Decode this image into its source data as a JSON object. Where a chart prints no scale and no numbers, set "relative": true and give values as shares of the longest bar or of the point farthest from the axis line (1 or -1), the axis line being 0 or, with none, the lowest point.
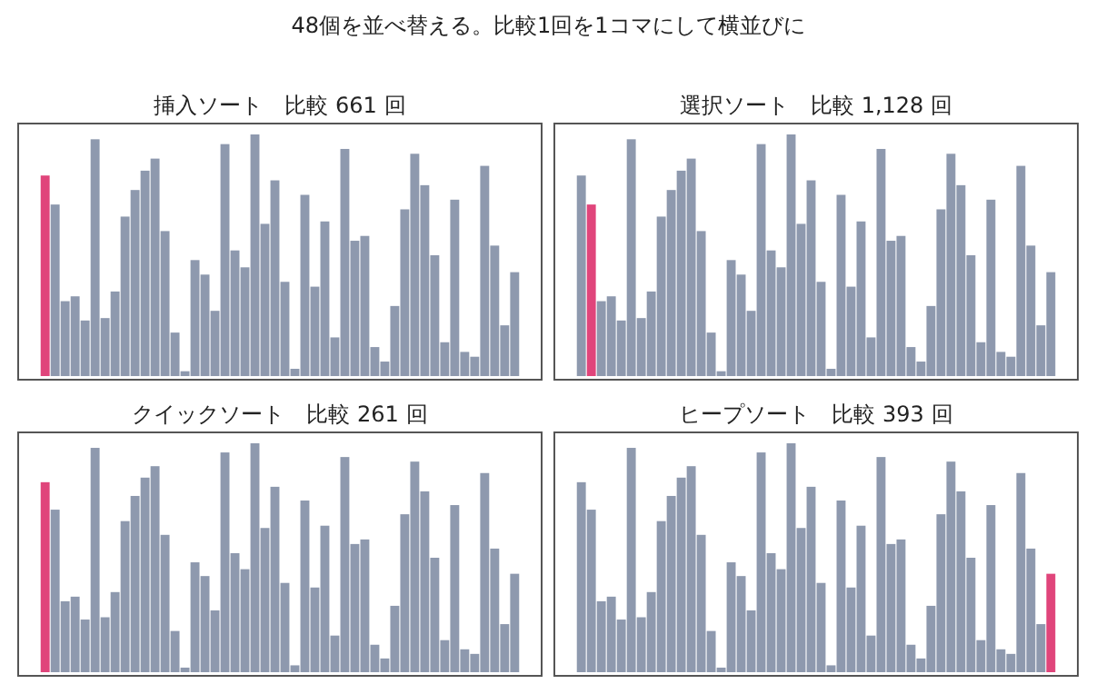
{
  "chart_data": [
    {
      "type": "bar",
      "title": "挿入ソート　比較 661 回",
      "annotations": [
        "48個を並べ替える。比較1回を1コマにして横並びに"
      ],
      "relative": true,
      "categories": [
        null,
        null,
        null,
        null,
        null,
        null,
        null,
        null,
        null,
        null,
        null,
        null,
        null,
        null,
        null,
        null,
        null,
        null,
        null,
        null,
        null,
        null,
        null,
        null,
        null,
        null,
        null,
        null,
        null,
        null,
        null,
        null,
        null,
        null,
        null,
        null,
        null,
        null,
        null,
        null,
        null,
        null,
        null,
        null,
        null,
        null,
        null,
        null
      ],
      "series": [
        {
          "values": [
            0.83,
            0.71,
            0.31,
            0.33,
            0.23,
            0.98,
            0.24,
            0.35,
            0.66,
            0.77,
            0.85,
            0.9,
            0.6,
            0.18,
            0.02,
            0.48,
            0.42,
            0.27,
            0.96,
            0.52,
            0.45,
            1.0,
            0.63,
            0.81,
            0.39,
            0.03,
            0.75,
            0.37,
            0.64,
            0.16,
            0.94,
            0.56,
            0.58,
            0.12,
            0.06,
            0.29,
            0.69,
            0.92,
            0.79,
            0.5,
            0.14,
            0.73,
            0.1,
            0.08,
            0.87,
            0.54,
            0.21,
            0.43
          ],
          "colors": [
            "#e0457b",
            "#8e99ae",
            "#8e99ae",
            "#8e99ae",
            "#8e99ae",
            "#8e99ae",
            "#8e99ae",
            "#8e99ae",
            "#8e99ae",
            "#8e99ae",
            "#8e99ae",
            "#8e99ae",
            "#8e99ae",
            "#8e99ae",
            "#8e99ae",
            "#8e99ae",
            "#8e99ae",
            "#8e99ae",
            "#8e99ae",
            "#8e99ae",
            "#8e99ae",
            "#8e99ae",
            "#8e99ae",
            "#8e99ae",
            "#8e99ae",
            "#8e99ae",
            "#8e99ae",
            "#8e99ae",
            "#8e99ae",
            "#8e99ae",
            "#8e99ae",
            "#8e99ae",
            "#8e99ae",
            "#8e99ae",
            "#8e99ae",
            "#8e99ae",
            "#8e99ae",
            "#8e99ae",
            "#8e99ae",
            "#8e99ae",
            "#8e99ae",
            "#8e99ae",
            "#8e99ae",
            "#8e99ae",
            "#8e99ae",
            "#8e99ae",
            "#8e99ae",
            "#8e99ae"
          ]
        }
      ]
    },
    {
      "type": "bar",
      "title": "選択ソート　比較 1,128 回",
      "relative": true,
      "categories": [
        null,
        null,
        null,
        null,
        null,
        null,
        null,
        null,
        null,
        null,
        null,
        null,
        null,
        null,
        null,
        null,
        null,
        null,
        null,
        null,
        null,
        null,
        null,
        null,
        null,
        null,
        null,
        null,
        null,
        null,
        null,
        null,
        null,
        null,
        null,
        null,
        null,
        null,
        null,
        null,
        null,
        null,
        null,
        null,
        null,
        null,
        null,
        null
      ],
      "series": [
        {
          "values": [
            0.83,
            0.71,
            0.31,
            0.33,
            0.23,
            0.98,
            0.24,
            0.35,
            0.66,
            0.77,
            0.85,
            0.9,
            0.6,
            0.18,
            0.02,
            0.48,
            0.42,
            0.27,
            0.96,
            0.52,
            0.45,
            1.0,
            0.63,
            0.81,
            0.39,
            0.03,
            0.75,
            0.37,
            0.64,
            0.16,
            0.94,
            0.56,
            0.58,
            0.12,
            0.06,
            0.29,
            0.69,
            0.92,
            0.79,
            0.5,
            0.14,
            0.73,
            0.1,
            0.08,
            0.87,
            0.54,
            0.21,
            0.43
          ],
          "colors": [
            "#8e99ae",
            "#e0457b",
            "#8e99ae",
            "#8e99ae",
            "#8e99ae",
            "#8e99ae",
            "#8e99ae",
            "#8e99ae",
            "#8e99ae",
            "#8e99ae",
            "#8e99ae",
            "#8e99ae",
            "#8e99ae",
            "#8e99ae",
            "#8e99ae",
            "#8e99ae",
            "#8e99ae",
            "#8e99ae",
            "#8e99ae",
            "#8e99ae",
            "#8e99ae",
            "#8e99ae",
            "#8e99ae",
            "#8e99ae",
            "#8e99ae",
            "#8e99ae",
            "#8e99ae",
            "#8e99ae",
            "#8e99ae",
            "#8e99ae",
            "#8e99ae",
            "#8e99ae",
            "#8e99ae",
            "#8e99ae",
            "#8e99ae",
            "#8e99ae",
            "#8e99ae",
            "#8e99ae",
            "#8e99ae",
            "#8e99ae",
            "#8e99ae",
            "#8e99ae",
            "#8e99ae",
            "#8e99ae",
            "#8e99ae",
            "#8e99ae",
            "#8e99ae",
            "#8e99ae"
          ]
        }
      ]
    },
    {
      "type": "bar",
      "title": "クイックソート　比較 261 回",
      "relative": true,
      "categories": [
        null,
        null,
        null,
        null,
        null,
        null,
        null,
        null,
        null,
        null,
        null,
        null,
        null,
        null,
        null,
        null,
        null,
        null,
        null,
        null,
        null,
        null,
        null,
        null,
        null,
        null,
        null,
        null,
        null,
        null,
        null,
        null,
        null,
        null,
        null,
        null,
        null,
        null,
        null,
        null,
        null,
        null,
        null,
        null,
        null,
        null,
        null,
        null
      ],
      "series": [
        {
          "values": [
            0.83,
            0.71,
            0.31,
            0.33,
            0.23,
            0.98,
            0.24,
            0.35,
            0.66,
            0.77,
            0.85,
            0.9,
            0.6,
            0.18,
            0.02,
            0.48,
            0.42,
            0.27,
            0.96,
            0.52,
            0.45,
            1.0,
            0.63,
            0.81,
            0.39,
            0.03,
            0.75,
            0.37,
            0.64,
            0.16,
            0.94,
            0.56,
            0.58,
            0.12,
            0.06,
            0.29,
            0.69,
            0.92,
            0.79,
            0.5,
            0.14,
            0.73,
            0.1,
            0.08,
            0.87,
            0.54,
            0.21,
            0.43
          ],
          "colors": [
            "#e0457b",
            "#8e99ae",
            "#8e99ae",
            "#8e99ae",
            "#8e99ae",
            "#8e99ae",
            "#8e99ae",
            "#8e99ae",
            "#8e99ae",
            "#8e99ae",
            "#8e99ae",
            "#8e99ae",
            "#8e99ae",
            "#8e99ae",
            "#8e99ae",
            "#8e99ae",
            "#8e99ae",
            "#8e99ae",
            "#8e99ae",
            "#8e99ae",
            "#8e99ae",
            "#8e99ae",
            "#8e99ae",
            "#8e99ae",
            "#8e99ae",
            "#8e99ae",
            "#8e99ae",
            "#8e99ae",
            "#8e99ae",
            "#8e99ae",
            "#8e99ae",
            "#8e99ae",
            "#8e99ae",
            "#8e99ae",
            "#8e99ae",
            "#8e99ae",
            "#8e99ae",
            "#8e99ae",
            "#8e99ae",
            "#8e99ae",
            "#8e99ae",
            "#8e99ae",
            "#8e99ae",
            "#8e99ae",
            "#8e99ae",
            "#8e99ae",
            "#8e99ae",
            "#8e99ae"
          ]
        }
      ]
    },
    {
      "type": "bar",
      "title": "ヒープソート　比較 393 回",
      "relative": true,
      "categories": [
        null,
        null,
        null,
        null,
        null,
        null,
        null,
        null,
        null,
        null,
        null,
        null,
        null,
        null,
        null,
        null,
        null,
        null,
        null,
        null,
        null,
        null,
        null,
        null,
        null,
        null,
        null,
        null,
        null,
        null,
        null,
        null,
        null,
        null,
        null,
        null,
        null,
        null,
        null,
        null,
        null,
        null,
        null,
        null,
        null,
        null,
        null,
        null
      ],
      "series": [
        {
          "values": [
            0.83,
            0.71,
            0.31,
            0.33,
            0.23,
            0.98,
            0.24,
            0.35,
            0.66,
            0.77,
            0.85,
            0.9,
            0.6,
            0.18,
            0.02,
            0.48,
            0.42,
            0.27,
            0.96,
            0.52,
            0.45,
            1.0,
            0.63,
            0.81,
            0.39,
            0.03,
            0.75,
            0.37,
            0.64,
            0.16,
            0.94,
            0.56,
            0.58,
            0.12,
            0.06,
            0.29,
            0.69,
            0.92,
            0.79,
            0.5,
            0.14,
            0.73,
            0.1,
            0.08,
            0.87,
            0.54,
            0.21,
            0.43
          ],
          "colors": [
            "#8e99ae",
            "#8e99ae",
            "#8e99ae",
            "#8e99ae",
            "#8e99ae",
            "#8e99ae",
            "#8e99ae",
            "#8e99ae",
            "#8e99ae",
            "#8e99ae",
            "#8e99ae",
            "#8e99ae",
            "#8e99ae",
            "#8e99ae",
            "#8e99ae",
            "#8e99ae",
            "#8e99ae",
            "#8e99ae",
            "#8e99ae",
            "#8e99ae",
            "#8e99ae",
            "#8e99ae",
            "#8e99ae",
            "#8e99ae",
            "#8e99ae",
            "#8e99ae",
            "#8e99ae",
            "#8e99ae",
            "#8e99ae",
            "#8e99ae",
            "#8e99ae",
            "#8e99ae",
            "#8e99ae",
            "#8e99ae",
            "#8e99ae",
            "#8e99ae",
            "#8e99ae",
            "#8e99ae",
            "#8e99ae",
            "#8e99ae",
            "#8e99ae",
            "#8e99ae",
            "#8e99ae",
            "#8e99ae",
            "#8e99ae",
            "#8e99ae",
            "#8e99ae",
            "#e0457b"
          ]
        }
      ]
    }
  ]
}
